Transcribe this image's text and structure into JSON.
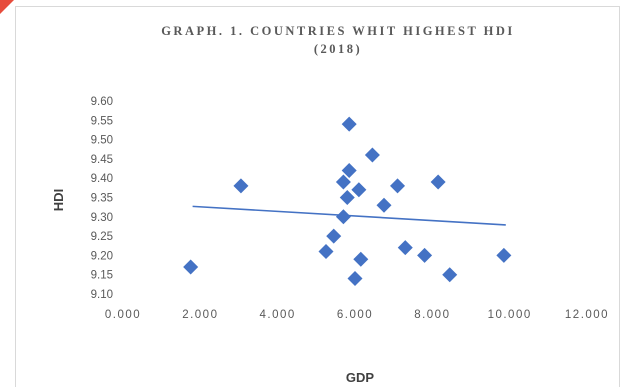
{
  "chart_data": {
    "type": "scatter",
    "title_lines": [
      "GRAPH. 1. COUNTRIES WHIT HIGHEST HDI",
      "(2018)"
    ],
    "xlabel": "GDP",
    "ylabel": "HDI",
    "xlim": [
      0,
      12000
    ],
    "ylim": [
      9.1,
      9.6
    ],
    "x_tick_values": [
      0,
      2000,
      4000,
      6000,
      8000,
      10000,
      12000
    ],
    "x_tick_labels": [
      "0.000",
      "2.000",
      "4.000",
      "6.000",
      "8.000",
      "10.000",
      "12.000"
    ],
    "y_tick_values": [
      9.1,
      9.15,
      9.2,
      9.25,
      9.3,
      9.35,
      9.4,
      9.45,
      9.5,
      9.55,
      9.6
    ],
    "y_tick_labels": [
      "9.10",
      "9.15",
      "9.20",
      "9.25",
      "9.30",
      "9.35",
      "9.40",
      "9.45",
      "9.50",
      "9.55",
      "9.60"
    ],
    "grid": false,
    "marker": "diamond",
    "series_color": "#4472c4",
    "trendline": {
      "type": "linear",
      "x": [
        1800,
        9900
      ],
      "y": [
        9.327,
        9.279
      ]
    },
    "points": [
      {
        "x": 1750,
        "y": 9.17
      },
      {
        "x": 3050,
        "y": 9.38
      },
      {
        "x": 5250,
        "y": 9.21
      },
      {
        "x": 5450,
        "y": 9.25
      },
      {
        "x": 5700,
        "y": 9.3
      },
      {
        "x": 5700,
        "y": 9.39
      },
      {
        "x": 5800,
        "y": 9.35
      },
      {
        "x": 5850,
        "y": 9.54
      },
      {
        "x": 5850,
        "y": 9.42
      },
      {
        "x": 6000,
        "y": 9.14
      },
      {
        "x": 6100,
        "y": 9.37
      },
      {
        "x": 6150,
        "y": 9.19
      },
      {
        "x": 6450,
        "y": 9.46
      },
      {
        "x": 6750,
        "y": 9.33
      },
      {
        "x": 7100,
        "y": 9.38
      },
      {
        "x": 7300,
        "y": 9.22
      },
      {
        "x": 7800,
        "y": 9.2
      },
      {
        "x": 8150,
        "y": 9.39
      },
      {
        "x": 8450,
        "y": 9.15
      },
      {
        "x": 9850,
        "y": 9.2
      }
    ]
  }
}
